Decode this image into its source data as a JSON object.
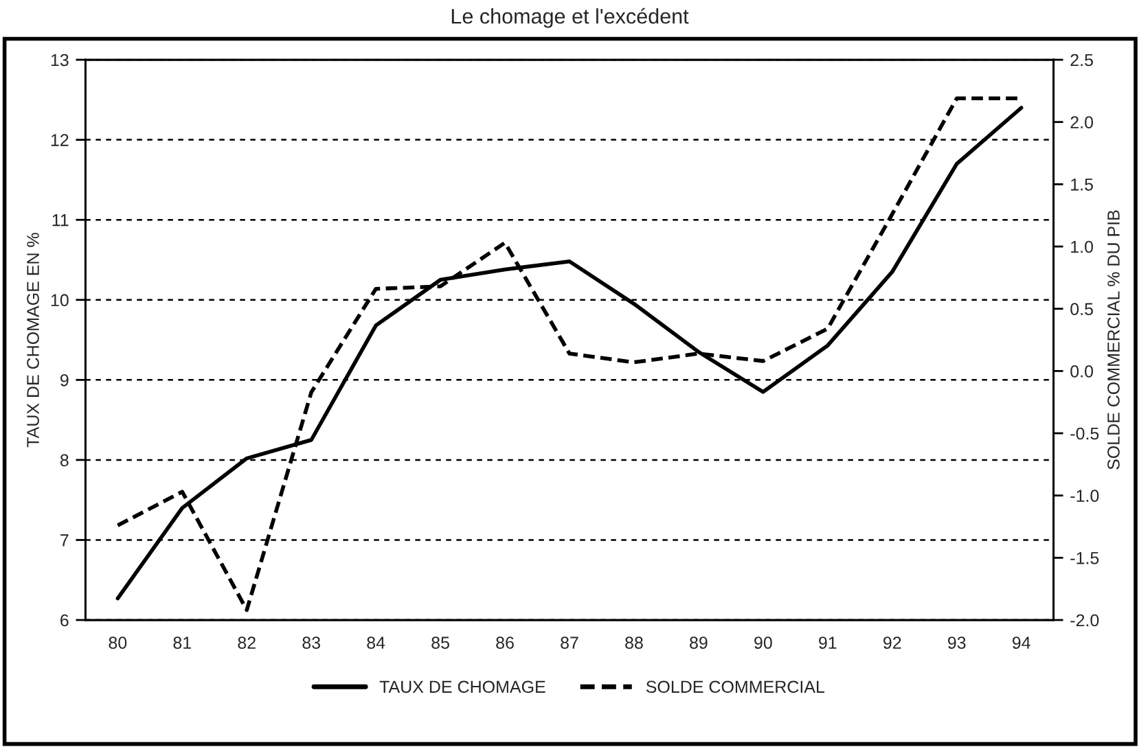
{
  "chart_data": {
    "type": "line",
    "title": "Le chomage et l'excédent",
    "ylabel": "TAUX DE CHOMAGE EN %",
    "y2label": "SOLDE COMMERCIAL % DU PIB",
    "x": [
      80,
      81,
      82,
      83,
      84,
      85,
      86,
      87,
      88,
      89,
      90,
      91,
      92,
      93,
      94
    ],
    "series": [
      {
        "name": "TAUX DE CHOMAGE",
        "color": "#000000",
        "line_style": "solid",
        "values": [
          6.27,
          7.4,
          8.02,
          8.25,
          9.68,
          10.25,
          10.38,
          10.48,
          9.95,
          9.35,
          8.85,
          9.43,
          10.35,
          11.7,
          12.4
        ]
      },
      {
        "name": "SOLDE COMMERCIAL",
        "color": "#000000",
        "line_style": "dashed",
        "axis": "y2",
        "values": [
          -1.24,
          -0.97,
          -1.92,
          -0.17,
          0.66,
          0.68,
          1.03,
          0.14,
          0.07,
          0.14,
          0.08,
          0.34,
          1.26,
          2.19,
          2.19
        ]
      }
    ],
    "xlim": [
      79.5,
      94.5
    ],
    "xticks": [
      80,
      81,
      82,
      83,
      84,
      85,
      86,
      87,
      88,
      89,
      90,
      91,
      92,
      93,
      94
    ],
    "ylim": [
      6,
      13
    ],
    "yticks": [
      6,
      7,
      8,
      9,
      10,
      11,
      12,
      13
    ],
    "y2lim": [
      -2.0,
      2.5
    ],
    "y2ticks": [
      {
        "value": -2.0,
        "label": "-2.0"
      },
      {
        "value": -1.5,
        "label": "-1.5"
      },
      {
        "value": -1.0,
        "label": "-1.0"
      },
      {
        "value": -0.5,
        "label": "-0.5"
      },
      {
        "value": 0.0,
        "label": "0.0"
      },
      {
        "value": 0.5,
        "label": "0.5"
      },
      {
        "value": 1.0,
        "label": "1.0"
      },
      {
        "value": 1.5,
        "label": "1.5"
      },
      {
        "value": 2.0,
        "label": "2.0"
      },
      {
        "value": 2.5,
        "label": "2.5"
      }
    ],
    "grid": "y",
    "legend": "bottom",
    "marker": "none"
  }
}
